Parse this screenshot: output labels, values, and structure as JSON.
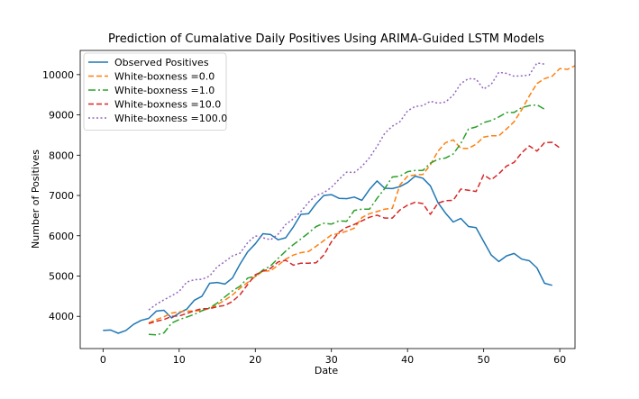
{
  "chart_data": {
    "type": "line",
    "title": "Prediction of Cumalative Daily Positives Using ARIMA-Guided LSTM Models",
    "xlabel": "Date",
    "ylabel": "Number of Positives",
    "xlim": [
      -3,
      62
    ],
    "ylim": [
      3200,
      10600
    ],
    "xticks": [
      0,
      10,
      20,
      30,
      40,
      50,
      60
    ],
    "yticks": [
      4000,
      5000,
      6000,
      7000,
      8000,
      9000,
      10000
    ],
    "grid": false,
    "legend_position": "top-left",
    "series": [
      {
        "name": "Observed Positives",
        "color": "#1f77b4",
        "linestyle": "solid",
        "x_start": 0,
        "values": [
          3650,
          3660,
          3580,
          3650,
          3800,
          3900,
          3950,
          4130,
          4150,
          3960,
          4080,
          4180,
          4400,
          4500,
          4820,
          4840,
          4800,
          4950,
          5300,
          5600,
          5800,
          6050,
          6030,
          5900,
          5950,
          6220,
          6530,
          6550,
          6800,
          7000,
          7020,
          6930,
          6920,
          6960,
          6880,
          7150,
          7360,
          7180,
          7170,
          7220,
          7320,
          7480,
          7430,
          7240,
          6820,
          6560,
          6340,
          6430,
          6230,
          6200,
          5860,
          5520,
          5360,
          5500,
          5560,
          5420,
          5380,
          5200,
          4820,
          4770
        ]
      },
      {
        "name": "White-boxness =0.0",
        "color": "#ff7f0e",
        "linestyle": "dashed",
        "x_start": 6,
        "values": [
          3840,
          3920,
          3990,
          4080,
          4110,
          4130,
          4130,
          4150,
          4200,
          4290,
          4400,
          4530,
          4700,
          4840,
          4990,
          5120,
          5130,
          5270,
          5420,
          5520,
          5580,
          5610,
          5740,
          5880,
          6020,
          6060,
          6110,
          6190,
          6450,
          6550,
          6600,
          6660,
          6680,
          7260,
          7480,
          7510,
          7520,
          7760,
          8100,
          8310,
          8380,
          8170,
          8170,
          8270,
          8450,
          8480,
          8480,
          8650,
          8830,
          9130,
          9470,
          9780,
          9900,
          9960,
          10150,
          10130,
          10220
        ]
      },
      {
        "name": "White-boxness =1.0",
        "color": "#2ca02c",
        "linestyle": "dashdot",
        "x_start": 6,
        "values": [
          3550,
          3540,
          3590,
          3830,
          3920,
          3980,
          4050,
          4140,
          4210,
          4330,
          4480,
          4630,
          4750,
          4950,
          4990,
          5150,
          5250,
          5440,
          5620,
          5780,
          5920,
          6070,
          6230,
          6310,
          6290,
          6370,
          6360,
          6630,
          6660,
          6660,
          6930,
          7170,
          7460,
          7480,
          7590,
          7620,
          7620,
          7800,
          7900,
          7930,
          8030,
          8290,
          8650,
          8700,
          8810,
          8860,
          8950,
          9060,
          9060,
          9180,
          9230,
          9250,
          9140
        ]
      },
      {
        "name": "White-boxness =10.0",
        "color": "#d62728",
        "linestyle": "dashed",
        "x_start": 6,
        "values": [
          3820,
          3880,
          3920,
          4000,
          4010,
          4070,
          4140,
          4190,
          4190,
          4240,
          4270,
          4370,
          4540,
          4790,
          5030,
          5120,
          5190,
          5350,
          5390,
          5270,
          5320,
          5320,
          5330,
          5520,
          5850,
          6090,
          6210,
          6280,
          6370,
          6460,
          6510,
          6440,
          6440,
          6640,
          6760,
          6830,
          6800,
          6530,
          6810,
          6870,
          6880,
          7160,
          7130,
          7100,
          7510,
          7390,
          7540,
          7730,
          7820,
          8060,
          8230,
          8100,
          8310,
          8320,
          8180
        ]
      },
      {
        "name": "White-boxness =100.0",
        "color": "#9467bd",
        "linestyle": "dotted",
        "x_start": 6,
        "values": [
          4160,
          4300,
          4410,
          4510,
          4620,
          4850,
          4910,
          4920,
          5000,
          5230,
          5360,
          5500,
          5570,
          5830,
          6000,
          5950,
          5900,
          6040,
          6280,
          6420,
          6600,
          6830,
          7000,
          7070,
          7200,
          7400,
          7580,
          7570,
          7720,
          7940,
          8220,
          8540,
          8720,
          8830,
          9100,
          9210,
          9230,
          9340,
          9290,
          9320,
          9490,
          9780,
          9900,
          9890,
          9640,
          9760,
          10060,
          10030,
          9960,
          9970,
          9990,
          10290,
          10260
        ]
      }
    ]
  }
}
